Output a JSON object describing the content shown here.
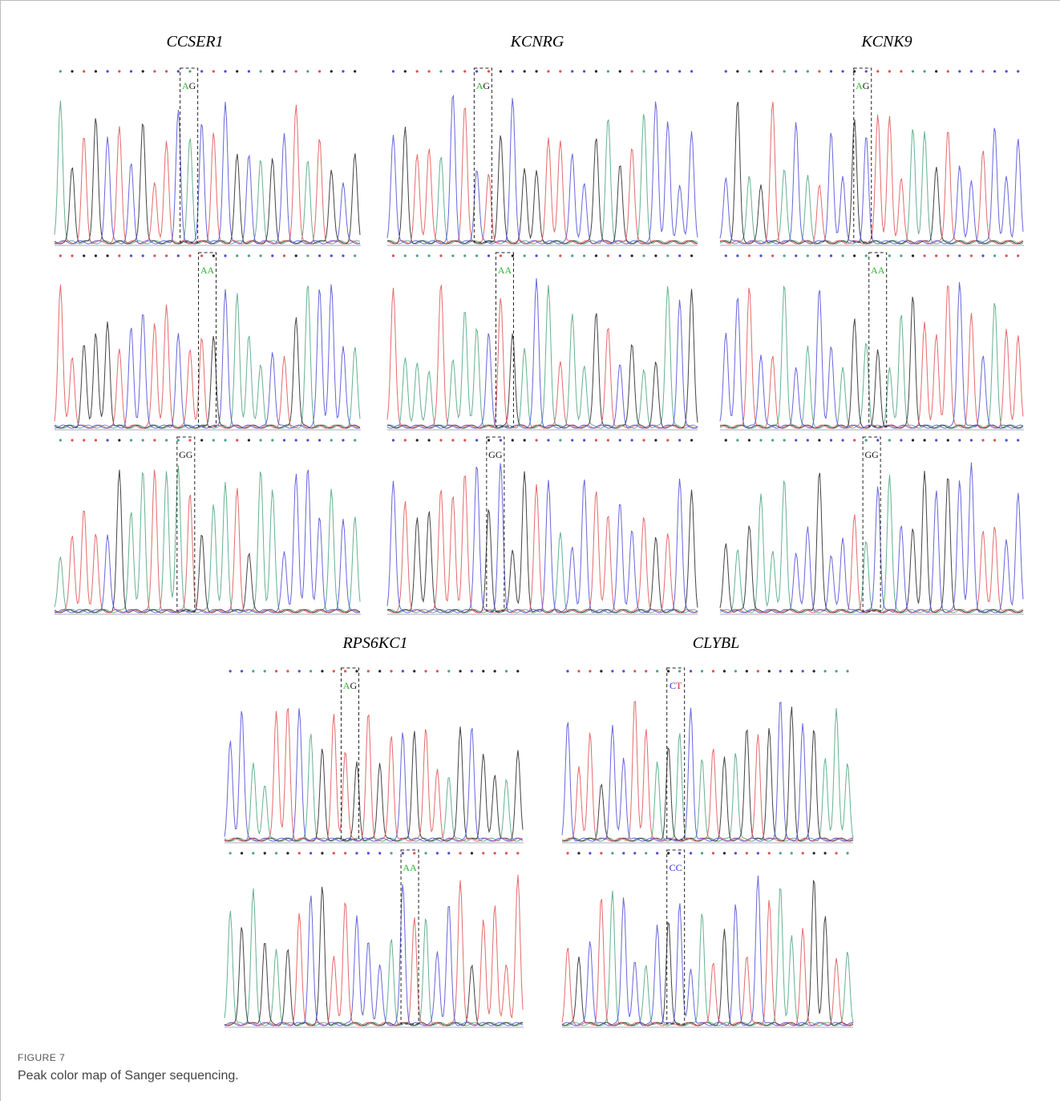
{
  "figure": {
    "label": "FIGURE 7",
    "caption": "Peak color map of Sanger sequencing.",
    "genes": [
      {
        "name": "CCSER1",
        "genotypes": [
          [
            "A",
            "G"
          ],
          [
            "A",
            "A"
          ],
          [
            "G",
            "G"
          ]
        ]
      },
      {
        "name": "KCNRG",
        "genotypes": [
          [
            "A",
            "G"
          ],
          [
            "A",
            "A"
          ],
          [
            "G",
            "G"
          ]
        ]
      },
      {
        "name": "KCNK9",
        "genotypes": [
          [
            "A",
            "G"
          ],
          [
            "A",
            "A"
          ],
          [
            "G",
            "G"
          ]
        ]
      },
      {
        "name": "RPS6KC1",
        "genotypes": [
          [
            "A",
            "G"
          ],
          [
            "A",
            "A"
          ]
        ]
      },
      {
        "name": "CLYBL",
        "genotypes": [
          [
            "C",
            "T"
          ],
          [
            "C",
            "C"
          ]
        ]
      }
    ]
  }
}
